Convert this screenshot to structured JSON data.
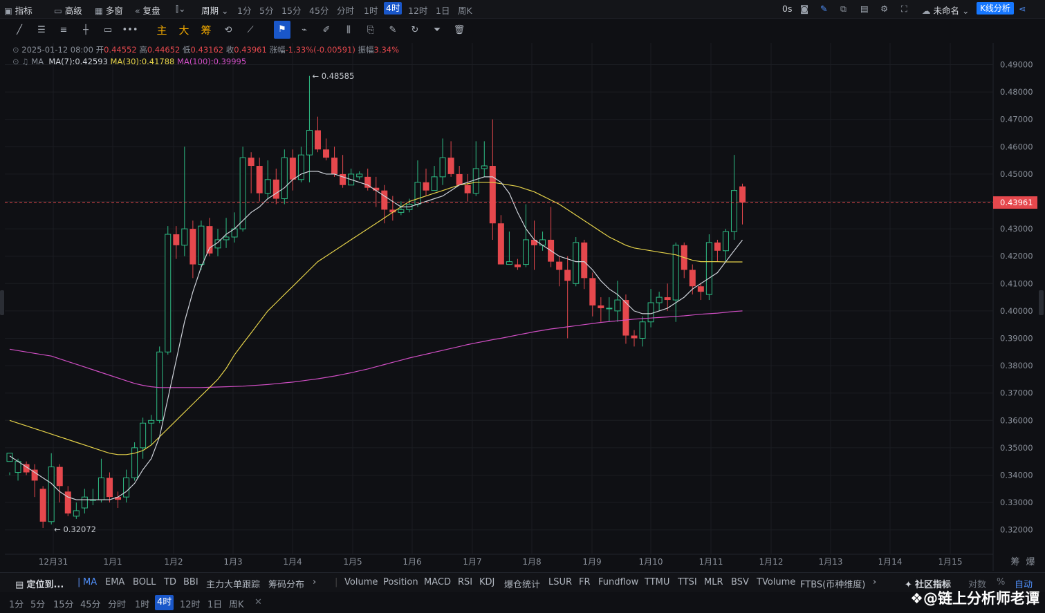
{
  "toolbar": {
    "indicators": "指标",
    "advanced": "高级",
    "multi_window": "多窗",
    "replay": "复盘",
    "period": "周期",
    "timeframes": [
      "1分",
      "5分",
      "15分",
      "45分",
      "分时",
      "1时",
      "4时",
      "12时",
      "1日",
      "周K"
    ],
    "active_timeframe": "4时",
    "countdown": "0s",
    "layout_name": "未命名",
    "kline_analysis": "K线分析"
  },
  "draw_tools": {
    "main_label": "主",
    "big_label": "大",
    "chip_label": "筹"
  },
  "info": {
    "datetime": "2025-01-12 08:00",
    "open_label": "开",
    "open": "0.44552",
    "high_label": "高",
    "high": "0.44652",
    "low_label": "低",
    "low": "0.43162",
    "close_label": "收",
    "close": "0.43961",
    "change_label": "涨幅",
    "change": "-1.33%(-0.00591)",
    "amplitude_label": "振幅",
    "amplitude": "3.34%",
    "ma_label": "MA",
    "ma7": "MA(7):0.42593",
    "ma30": "MA(30):0.41788",
    "ma100": "MA(100):0.39995"
  },
  "colors": {
    "up": "#2ebd85",
    "down": "#e5484d",
    "ma7": "#cfd3da",
    "ma30": "#e6d34a",
    "ma100": "#d04ec4",
    "accent": "#1a57c9",
    "current_price": "#e5484d"
  },
  "chart_data": {
    "type": "candlestick",
    "price_axis": [
      "0.49000",
      "0.48000",
      "0.47000",
      "0.46000",
      "0.45000",
      "0.44000",
      "0.43000",
      "0.42000",
      "0.41000",
      "0.40000",
      "0.39000",
      "0.38000",
      "0.37000",
      "0.36000",
      "0.35000",
      "0.34000",
      "0.33000",
      "0.32000"
    ],
    "date_axis": [
      "12月31",
      "1月1",
      "1月2",
      "1月3",
      "1月4",
      "1月5",
      "1月6",
      "1月7",
      "1月8",
      "1月9",
      "1月10",
      "1月11",
      "1月12",
      "1月13",
      "1月14",
      "1月15"
    ],
    "current_price": "0.43961",
    "high_marker": "0.48585",
    "low_marker": "0.32072",
    "ylim": [
      0.3155,
      0.4938
    ],
    "candles": [
      [
        0.345,
        0.348,
        0.341,
        0.34
      ],
      [
        0.341,
        0.345,
        0.346,
        0.338
      ],
      [
        0.344,
        0.341,
        0.345,
        0.34
      ],
      [
        0.342,
        0.338,
        0.344,
        0.332
      ],
      [
        0.335,
        0.323,
        0.336,
        0.3207
      ],
      [
        0.323,
        0.343,
        0.348,
        0.322
      ],
      [
        0.343,
        0.336,
        0.344,
        0.33
      ],
      [
        0.334,
        0.326,
        0.336,
        0.325
      ],
      [
        0.325,
        0.327,
        0.33,
        0.324
      ],
      [
        0.328,
        0.332,
        0.335,
        0.326
      ],
      [
        0.331,
        0.331,
        0.335,
        0.329
      ],
      [
        0.331,
        0.339,
        0.346,
        0.33
      ],
      [
        0.339,
        0.332,
        0.341,
        0.33
      ],
      [
        0.332,
        0.331,
        0.334,
        0.328
      ],
      [
        0.332,
        0.339,
        0.342,
        0.33
      ],
      [
        0.339,
        0.35,
        0.352,
        0.338
      ],
      [
        0.35,
        0.359,
        0.361,
        0.346
      ],
      [
        0.359,
        0.36,
        0.362,
        0.351
      ],
      [
        0.36,
        0.385,
        0.387,
        0.359
      ],
      [
        0.385,
        0.428,
        0.431,
        0.384
      ],
      [
        0.428,
        0.424,
        0.431,
        0.419
      ],
      [
        0.424,
        0.43,
        0.46,
        0.42
      ],
      [
        0.43,
        0.417,
        0.433,
        0.412
      ],
      [
        0.417,
        0.431,
        0.433,
        0.415
      ],
      [
        0.431,
        0.421,
        0.434,
        0.42
      ],
      [
        0.423,
        0.426,
        0.43,
        0.42
      ],
      [
        0.426,
        0.427,
        0.434,
        0.423
      ],
      [
        0.427,
        0.43,
        0.436,
        0.425
      ],
      [
        0.43,
        0.456,
        0.46,
        0.429
      ],
      [
        0.456,
        0.453,
        0.458,
        0.443
      ],
      [
        0.453,
        0.443,
        0.456,
        0.44
      ],
      [
        0.443,
        0.448,
        0.455,
        0.441
      ],
      [
        0.448,
        0.441,
        0.452,
        0.439
      ],
      [
        0.441,
        0.456,
        0.459,
        0.439
      ],
      [
        0.456,
        0.448,
        0.459,
        0.444
      ],
      [
        0.448,
        0.457,
        0.46,
        0.447
      ],
      [
        0.457,
        0.466,
        0.4859,
        0.447
      ],
      [
        0.466,
        0.459,
        0.471,
        0.458
      ],
      [
        0.459,
        0.456,
        0.463,
        0.455
      ],
      [
        0.456,
        0.45,
        0.46,
        0.449
      ],
      [
        0.45,
        0.446,
        0.457,
        0.445
      ],
      [
        0.446,
        0.45,
        0.452,
        0.446
      ],
      [
        0.449,
        0.45,
        0.451,
        0.448
      ],
      [
        0.449,
        0.445,
        0.452,
        0.444
      ],
      [
        0.445,
        0.444,
        0.449,
        0.438
      ],
      [
        0.444,
        0.437,
        0.446,
        0.432
      ],
      [
        0.437,
        0.436,
        0.442,
        0.433
      ],
      [
        0.436,
        0.437,
        0.44,
        0.435
      ],
      [
        0.437,
        0.439,
        0.441,
        0.436
      ],
      [
        0.439,
        0.447,
        0.455,
        0.438
      ],
      [
        0.447,
        0.444,
        0.452,
        0.442
      ],
      [
        0.444,
        0.449,
        0.453,
        0.444
      ],
      [
        0.449,
        0.456,
        0.463,
        0.446
      ],
      [
        0.456,
        0.45,
        0.462,
        0.449
      ],
      [
        0.45,
        0.446,
        0.453,
        0.446
      ],
      [
        0.446,
        0.443,
        0.45,
        0.44
      ],
      [
        0.443,
        0.452,
        0.462,
        0.442
      ],
      [
        0.452,
        0.453,
        0.462,
        0.449
      ],
      [
        0.453,
        0.432,
        0.47,
        0.426
      ],
      [
        0.432,
        0.417,
        0.435,
        0.417
      ],
      [
        0.417,
        0.418,
        0.429,
        0.417
      ],
      [
        0.417,
        0.416,
        0.419,
        0.415
      ],
      [
        0.417,
        0.426,
        0.439,
        0.416
      ],
      [
        0.426,
        0.424,
        0.433,
        0.415
      ],
      [
        0.424,
        0.426,
        0.429,
        0.422
      ],
      [
        0.426,
        0.418,
        0.438,
        0.416
      ],
      [
        0.418,
        0.415,
        0.42,
        0.409
      ],
      [
        0.415,
        0.411,
        0.42,
        0.39
      ],
      [
        0.41,
        0.425,
        0.427,
        0.409
      ],
      [
        0.425,
        0.412,
        0.426,
        0.408
      ],
      [
        0.412,
        0.402,
        0.414,
        0.398
      ],
      [
        0.402,
        0.401,
        0.405,
        0.396
      ],
      [
        0.401,
        0.401,
        0.405,
        0.396
      ],
      [
        0.4,
        0.404,
        0.411,
        0.396
      ],
      [
        0.404,
        0.391,
        0.406,
        0.388
      ],
      [
        0.391,
        0.39,
        0.393,
        0.387
      ],
      [
        0.39,
        0.396,
        0.398,
        0.387
      ],
      [
        0.396,
        0.403,
        0.408,
        0.394
      ],
      [
        0.403,
        0.405,
        0.407,
        0.4
      ],
      [
        0.405,
        0.404,
        0.41,
        0.4
      ],
      [
        0.404,
        0.424,
        0.425,
        0.396
      ],
      [
        0.424,
        0.415,
        0.425,
        0.412
      ],
      [
        0.415,
        0.409,
        0.417,
        0.406
      ],
      [
        0.409,
        0.407,
        0.41,
        0.404
      ],
      [
        0.406,
        0.425,
        0.428,
        0.404
      ],
      [
        0.425,
        0.422,
        0.426,
        0.418
      ],
      [
        0.422,
        0.429,
        0.43,
        0.418
      ],
      [
        0.429,
        0.444,
        0.457,
        0.426
      ],
      [
        0.4455,
        0.4396,
        0.4465,
        0.4316
      ]
    ],
    "ma7": [
      0.347,
      0.345,
      0.343,
      0.341,
      0.339,
      0.337,
      0.334,
      0.332,
      0.331,
      0.331,
      0.331,
      0.331,
      0.331,
      0.332,
      0.334,
      0.337,
      0.342,
      0.346,
      0.354,
      0.368,
      0.382,
      0.396,
      0.407,
      0.416,
      0.423,
      0.425,
      0.428,
      0.43,
      0.433,
      0.436,
      0.438,
      0.441,
      0.443,
      0.445,
      0.448,
      0.45,
      0.451,
      0.451,
      0.45,
      0.45,
      0.449,
      0.448,
      0.447,
      0.446,
      0.444,
      0.442,
      0.44,
      0.438,
      0.438,
      0.439,
      0.44,
      0.441,
      0.442,
      0.444,
      0.446,
      0.447,
      0.448,
      0.449,
      0.449,
      0.447,
      0.443,
      0.436,
      0.43,
      0.426,
      0.424,
      0.422,
      0.42,
      0.419,
      0.418,
      0.418,
      0.415,
      0.411,
      0.408,
      0.406,
      0.403,
      0.4,
      0.399,
      0.399,
      0.4,
      0.401,
      0.403,
      0.405,
      0.408,
      0.41,
      0.412,
      0.414,
      0.418,
      0.422,
      0.4259
    ],
    "ma30": [
      0.36,
      0.359,
      0.358,
      0.357,
      0.356,
      0.355,
      0.354,
      0.353,
      0.352,
      0.351,
      0.35,
      0.349,
      0.348,
      0.3475,
      0.3475,
      0.348,
      0.349,
      0.351,
      0.354,
      0.357,
      0.36,
      0.363,
      0.366,
      0.369,
      0.372,
      0.375,
      0.379,
      0.384,
      0.388,
      0.392,
      0.396,
      0.4,
      0.403,
      0.406,
      0.409,
      0.412,
      0.415,
      0.418,
      0.42,
      0.422,
      0.424,
      0.426,
      0.428,
      0.43,
      0.432,
      0.434,
      0.436,
      0.438,
      0.44,
      0.441,
      0.442,
      0.443,
      0.444,
      0.445,
      0.446,
      0.4465,
      0.447,
      0.447,
      0.447,
      0.4465,
      0.446,
      0.4455,
      0.4445,
      0.4435,
      0.442,
      0.4405,
      0.439,
      0.437,
      0.435,
      0.433,
      0.431,
      0.429,
      0.427,
      0.4255,
      0.424,
      0.423,
      0.4225,
      0.422,
      0.4215,
      0.421,
      0.4205,
      0.4195,
      0.4185,
      0.418,
      0.418,
      0.418,
      0.4179,
      0.4179,
      0.4179
    ],
    "ma100": [
      0.386,
      0.3855,
      0.385,
      0.3845,
      0.384,
      0.3835,
      0.3825,
      0.3815,
      0.3805,
      0.3795,
      0.3785,
      0.3775,
      0.3765,
      0.3755,
      0.3745,
      0.3735,
      0.3728,
      0.3723,
      0.372,
      0.372,
      0.372,
      0.372,
      0.372,
      0.372,
      0.3721,
      0.3722,
      0.3723,
      0.3724,
      0.3725,
      0.3727,
      0.3729,
      0.3731,
      0.3734,
      0.3737,
      0.374,
      0.3744,
      0.3748,
      0.3752,
      0.3757,
      0.3762,
      0.3768,
      0.3774,
      0.3781,
      0.3788,
      0.3796,
      0.3804,
      0.3812,
      0.382,
      0.3828,
      0.3835,
      0.3842,
      0.3849,
      0.3856,
      0.3863,
      0.387,
      0.3877,
      0.3883,
      0.3889,
      0.3895,
      0.39,
      0.3906,
      0.3912,
      0.3918,
      0.3924,
      0.3929,
      0.3934,
      0.3938,
      0.3942,
      0.3946,
      0.395,
      0.3954,
      0.3958,
      0.3961,
      0.3964,
      0.3967,
      0.397,
      0.3972,
      0.3974,
      0.3976,
      0.3978,
      0.398,
      0.3982,
      0.3985,
      0.3988,
      0.399,
      0.3992,
      0.3995,
      0.3998,
      0.4
    ]
  },
  "bottom_indicators": {
    "locate": "定位到...",
    "main": [
      "MA",
      "EMA",
      "BOLL",
      "TD",
      "BBI",
      "主力大单跟踪",
      "筹码分布"
    ],
    "active_main": "MA",
    "sub": [
      "Volume",
      "Position",
      "MACD",
      "RSI",
      "KDJ",
      "爆仓统计",
      "LSUR",
      "FR",
      "Fundflow",
      "TTMU",
      "TTSI",
      "MLR",
      "BSV",
      "TVolume",
      "FTBS(币种维度)"
    ],
    "community": "社区指标",
    "log": "对数",
    "percent": "%",
    "auto": "自动"
  },
  "bottom_timeframes": [
    "1分",
    "5分",
    "15分",
    "45分",
    "分时",
    "1时",
    "4时",
    "12时",
    "1日",
    "周K"
  ],
  "bottom_active_timeframe": "4时",
  "watermark": "@链上分析师老谭"
}
